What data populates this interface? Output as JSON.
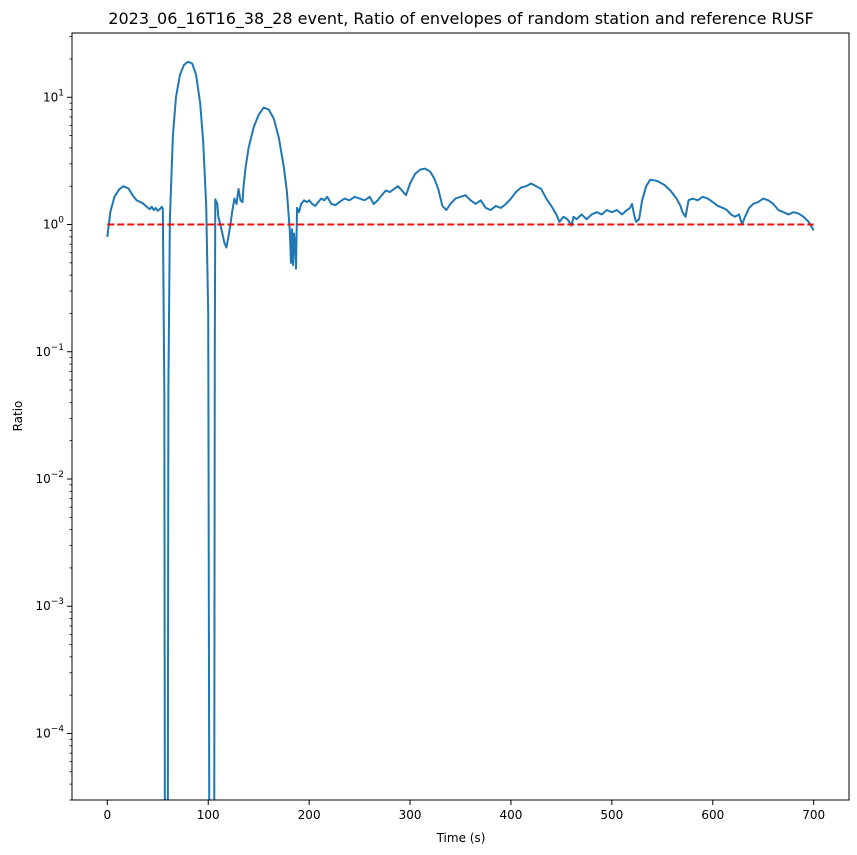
{
  "chart_data": {
    "type": "line",
    "title": "2023_06_16T16_38_28 event, Ratio of envelopes of random station and reference RUSF",
    "xlabel": "Time (s)",
    "ylabel": "Ratio",
    "xscale": "linear",
    "yscale": "log",
    "xlim": [
      -35,
      735
    ],
    "ylim": [
      3e-05,
      32
    ],
    "x_ticks": [
      0,
      100,
      200,
      300,
      400,
      500,
      600,
      700
    ],
    "x_tick_labels": [
      "0",
      "100",
      "200",
      "300",
      "400",
      "500",
      "600",
      "700"
    ],
    "y_ticks": [
      0.0001,
      0.001,
      0.01,
      0.1,
      1,
      10
    ],
    "y_tick_labels": [
      {
        "base": "10",
        "exp": "−4"
      },
      {
        "base": "10",
        "exp": "−3"
      },
      {
        "base": "10",
        "exp": "−2"
      },
      {
        "base": "10",
        "exp": "−1"
      },
      {
        "base": "10",
        "exp": "0"
      },
      {
        "base": "10",
        "exp": "1"
      }
    ],
    "grid": false,
    "legend": "none",
    "series": [
      {
        "style": "solid",
        "color": "#1f77b4",
        "points": [
          [
            0,
            0.8
          ],
          [
            3,
            1.25
          ],
          [
            7,
            1.65
          ],
          [
            12,
            1.9
          ],
          [
            16,
            2.0
          ],
          [
            21,
            1.92
          ],
          [
            25,
            1.7
          ],
          [
            29,
            1.55
          ],
          [
            33,
            1.5
          ],
          [
            36,
            1.45
          ],
          [
            39,
            1.38
          ],
          [
            42,
            1.32
          ],
          [
            44,
            1.38
          ],
          [
            46,
            1.3
          ],
          [
            48,
            1.35
          ],
          [
            50,
            1.28
          ],
          [
            52,
            1.32
          ],
          [
            54,
            1.38
          ],
          [
            55,
            1.32
          ],
          [
            56.5,
            0.05
          ],
          [
            57,
            3e-05
          ],
          [
            null,
            null
          ],
          [
            60,
            3e-05
          ],
          [
            60.5,
            0.05
          ],
          [
            62,
            1.1
          ],
          [
            65,
            5.0
          ],
          [
            68,
            10.0
          ],
          [
            72,
            15.0
          ],
          [
            76,
            18.0
          ],
          [
            80,
            19.0
          ],
          [
            84,
            18.5
          ],
          [
            88,
            15.0
          ],
          [
            92,
            9.0
          ],
          [
            95,
            4.5
          ],
          [
            98,
            1.4
          ],
          [
            100,
            0.2
          ],
          [
            101,
            3e-05
          ],
          [
            null,
            null
          ],
          [
            106,
            3e-05
          ],
          [
            106.5,
            0.1
          ],
          [
            107,
            1.58
          ],
          [
            109,
            1.45
          ],
          [
            110,
            1.15
          ],
          [
            112,
            1.0
          ],
          [
            114,
            0.85
          ],
          [
            116,
            0.72
          ],
          [
            118,
            0.66
          ],
          [
            120,
            0.8
          ],
          [
            122,
            1.0
          ],
          [
            124,
            1.3
          ],
          [
            126,
            1.6
          ],
          [
            128,
            1.45
          ],
          [
            130,
            1.9
          ],
          [
            132,
            1.55
          ],
          [
            134,
            1.5
          ],
          [
            135,
            2.0
          ],
          [
            137,
            2.8
          ],
          [
            140,
            4.0
          ],
          [
            145,
            5.8
          ],
          [
            150,
            7.3
          ],
          [
            155,
            8.3
          ],
          [
            160,
            8.0
          ],
          [
            165,
            6.8
          ],
          [
            170,
            4.8
          ],
          [
            175,
            2.8
          ],
          [
            178,
            1.8
          ],
          [
            180,
            1.1
          ],
          [
            181,
            0.85
          ],
          [
            182,
            0.5
          ],
          [
            183,
            0.92
          ],
          [
            184,
            0.48
          ],
          [
            185,
            0.85
          ],
          [
            186,
            0.7
          ],
          [
            187,
            0.45
          ],
          [
            188,
            1.35
          ],
          [
            190,
            1.25
          ],
          [
            192,
            1.45
          ],
          [
            195,
            1.55
          ],
          [
            198,
            1.5
          ],
          [
            200,
            1.55
          ],
          [
            203,
            1.45
          ],
          [
            206,
            1.4
          ],
          [
            209,
            1.5
          ],
          [
            212,
            1.6
          ],
          [
            215,
            1.55
          ],
          [
            218,
            1.65
          ],
          [
            222,
            1.45
          ],
          [
            226,
            1.42
          ],
          [
            230,
            1.5
          ],
          [
            235,
            1.6
          ],
          [
            240,
            1.55
          ],
          [
            245,
            1.65
          ],
          [
            250,
            1.6
          ],
          [
            255,
            1.55
          ],
          [
            260,
            1.65
          ],
          [
            264,
            1.45
          ],
          [
            268,
            1.55
          ],
          [
            272,
            1.7
          ],
          [
            276,
            1.85
          ],
          [
            280,
            1.8
          ],
          [
            284,
            1.9
          ],
          [
            288,
            2.0
          ],
          [
            292,
            1.85
          ],
          [
            296,
            1.7
          ],
          [
            300,
            2.1
          ],
          [
            305,
            2.5
          ],
          [
            310,
            2.7
          ],
          [
            315,
            2.75
          ],
          [
            320,
            2.6
          ],
          [
            324,
            2.3
          ],
          [
            328,
            1.9
          ],
          [
            332,
            1.4
          ],
          [
            334,
            1.35
          ],
          [
            336,
            1.3
          ],
          [
            340,
            1.45
          ],
          [
            345,
            1.6
          ],
          [
            350,
            1.65
          ],
          [
            355,
            1.7
          ],
          [
            360,
            1.55
          ],
          [
            365,
            1.45
          ],
          [
            370,
            1.55
          ],
          [
            375,
            1.35
          ],
          [
            380,
            1.3
          ],
          [
            385,
            1.4
          ],
          [
            390,
            1.35
          ],
          [
            395,
            1.45
          ],
          [
            400,
            1.6
          ],
          [
            405,
            1.8
          ],
          [
            410,
            1.95
          ],
          [
            415,
            2.0
          ],
          [
            420,
            2.1
          ],
          [
            425,
            2.0
          ],
          [
            430,
            1.9
          ],
          [
            435,
            1.6
          ],
          [
            440,
            1.4
          ],
          [
            445,
            1.2
          ],
          [
            448,
            1.05
          ],
          [
            452,
            1.15
          ],
          [
            456,
            1.1
          ],
          [
            460,
            0.98
          ],
          [
            462,
            1.15
          ],
          [
            465,
            1.1
          ],
          [
            470,
            1.2
          ],
          [
            475,
            1.1
          ],
          [
            480,
            1.2
          ],
          [
            485,
            1.25
          ],
          [
            490,
            1.2
          ],
          [
            495,
            1.3
          ],
          [
            500,
            1.25
          ],
          [
            505,
            1.3
          ],
          [
            510,
            1.2
          ],
          [
            515,
            1.3
          ],
          [
            518,
            1.35
          ],
          [
            520,
            1.45
          ],
          [
            522,
            1.2
          ],
          [
            524,
            1.05
          ],
          [
            527,
            1.1
          ],
          [
            530,
            1.55
          ],
          [
            534,
            2.0
          ],
          [
            538,
            2.25
          ],
          [
            545,
            2.2
          ],
          [
            552,
            2.05
          ],
          [
            558,
            1.85
          ],
          [
            564,
            1.6
          ],
          [
            568,
            1.4
          ],
          [
            570,
            1.25
          ],
          [
            573,
            1.15
          ],
          [
            576,
            1.55
          ],
          [
            580,
            1.6
          ],
          [
            585,
            1.55
          ],
          [
            590,
            1.65
          ],
          [
            595,
            1.6
          ],
          [
            600,
            1.5
          ],
          [
            605,
            1.4
          ],
          [
            610,
            1.35
          ],
          [
            614,
            1.3
          ],
          [
            618,
            1.2
          ],
          [
            622,
            1.15
          ],
          [
            626,
            1.2
          ],
          [
            629,
            1.0
          ],
          [
            632,
            1.15
          ],
          [
            636,
            1.35
          ],
          [
            640,
            1.45
          ],
          [
            645,
            1.5
          ],
          [
            650,
            1.6
          ],
          [
            655,
            1.55
          ],
          [
            660,
            1.45
          ],
          [
            665,
            1.3
          ],
          [
            670,
            1.25
          ],
          [
            675,
            1.2
          ],
          [
            680,
            1.25
          ],
          [
            685,
            1.22
          ],
          [
            690,
            1.15
          ],
          [
            695,
            1.05
          ],
          [
            700,
            0.9
          ]
        ]
      },
      {
        "style": "dashed",
        "color": "#e8120c",
        "points": [
          [
            0,
            1
          ],
          [
            700,
            1
          ]
        ]
      }
    ]
  }
}
